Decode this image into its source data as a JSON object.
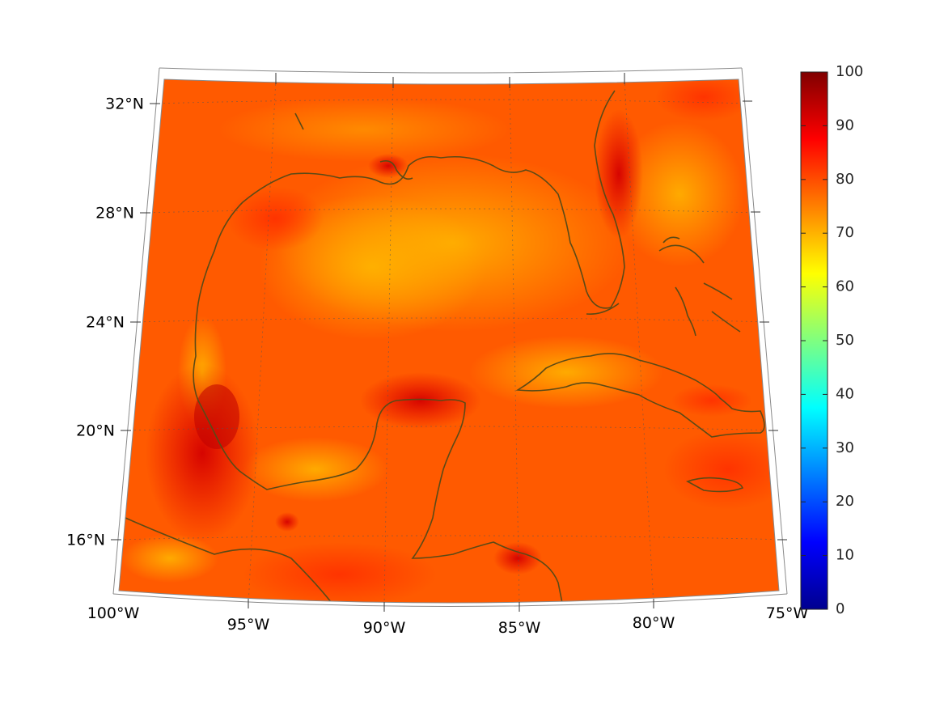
{
  "map": {
    "region": "Gulf of Mexico and Caribbean",
    "projection": "conic",
    "lon_range": [
      -100,
      -75
    ],
    "lat_range": [
      14,
      33
    ],
    "graticule": "dotted",
    "coastline_color": "#5b4a16",
    "field_colormap": "jet",
    "field_range_shown": [
      65,
      97
    ]
  },
  "lat_labels": [
    {
      "lat": 32,
      "label": "32°N"
    },
    {
      "lat": 28,
      "label": "28°N"
    },
    {
      "lat": 24,
      "label": "24°N"
    },
    {
      "lat": 20,
      "label": "20°N"
    },
    {
      "lat": 16,
      "label": "16°N"
    }
  ],
  "lon_labels": [
    {
      "lon": -100,
      "label": "100°W"
    },
    {
      "lon": -95,
      "label": "95°W"
    },
    {
      "lon": -90,
      "label": "90°W"
    },
    {
      "lon": -85,
      "label": "85°W"
    },
    {
      "lon": -80,
      "label": "80°W"
    },
    {
      "lon": -75,
      "label": "75°W"
    }
  ],
  "colorbar": {
    "min": 0,
    "max": 100,
    "ticks": [
      "0",
      "10",
      "20",
      "30",
      "40",
      "50",
      "60",
      "70",
      "80",
      "90",
      "100"
    ],
    "colormap": "jet"
  }
}
